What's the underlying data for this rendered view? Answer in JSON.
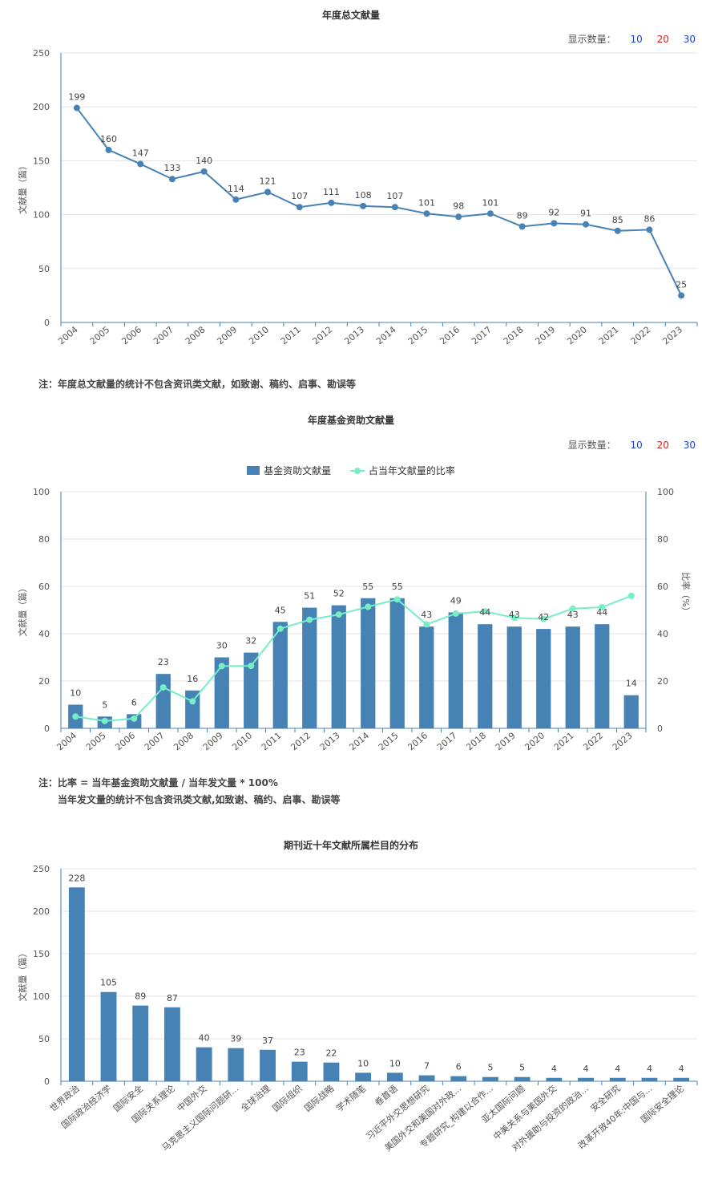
{
  "count_selector": {
    "label": "显示数量：",
    "options": [
      "10",
      "20",
      "30"
    ],
    "colors": [
      "#1a3fd6",
      "#e02020",
      "#1a3fd6"
    ]
  },
  "chart1_note": "注：年度总文献量的统计不包含资讯类文献，如致谢、稿约、启事、勘误等",
  "chart2_note": {
    "line1": "注：比率 = 当年基金资助文献量 / 当年发文量 * 100%",
    "line2": "当年发文量的统计不包含资讯类文献,如致谢、稿约、启事、勘误等"
  },
  "chart_data": [
    {
      "type": "line",
      "title": "年度总文献量",
      "ylabel": "文献量（篇）",
      "ylim": [
        0,
        250
      ],
      "yticks": [
        0,
        50,
        100,
        150,
        200,
        250
      ],
      "grid": true,
      "color": "#4682b4",
      "x": [
        "2004",
        "2005",
        "2006",
        "2007",
        "2008",
        "2009",
        "2010",
        "2011",
        "2012",
        "2013",
        "2014",
        "2015",
        "2016",
        "2017",
        "2018",
        "2019",
        "2020",
        "2021",
        "2022",
        "2023"
      ],
      "values": [
        199,
        160,
        147,
        133,
        140,
        114,
        121,
        107,
        111,
        108,
        107,
        101,
        98,
        101,
        89,
        92,
        91,
        85,
        86,
        25
      ]
    },
    {
      "type": "bar",
      "title": "年度基金资助文献量",
      "ylabel": "文献量（篇）",
      "y2label": "比率（%）",
      "ylim": [
        0,
        100
      ],
      "y2lim": [
        0,
        100
      ],
      "yticks": [
        0,
        20,
        40,
        60,
        80,
        100
      ],
      "grid": true,
      "categories": [
        "2004",
        "2005",
        "2006",
        "2007",
        "2008",
        "2009",
        "2010",
        "2011",
        "2012",
        "2013",
        "2014",
        "2015",
        "2016",
        "2017",
        "2018",
        "2019",
        "2020",
        "2021",
        "2022",
        "2023"
      ],
      "series": [
        {
          "name": "基金资助文献量",
          "type": "bar",
          "color": "#4682b4",
          "values": [
            10,
            5,
            6,
            23,
            16,
            30,
            32,
            45,
            51,
            52,
            55,
            55,
            43,
            49,
            44,
            43,
            42,
            43,
            44,
            14
          ]
        },
        {
          "name": "占当年文献量的比率",
          "type": "line",
          "axis": "right",
          "color": "#76eec6",
          "values": [
            5.0,
            3.1,
            4.1,
            17.3,
            11.4,
            26.3,
            26.4,
            42.1,
            45.9,
            48.1,
            51.4,
            54.5,
            43.9,
            48.5,
            49.4,
            46.7,
            46.2,
            50.6,
            51.2,
            56.0
          ]
        }
      ]
    },
    {
      "type": "bar",
      "title": "期刊近十年文献所属栏目的分布",
      "ylabel": "文献量（篇）",
      "ylim": [
        0,
        250
      ],
      "yticks": [
        0,
        50,
        100,
        150,
        200,
        250
      ],
      "grid": true,
      "color": "#4682b4",
      "categories": [
        "世界政治",
        "国际政治经济学",
        "国际安全",
        "国际关系理论",
        "中国外交",
        "马克思主义国际问题研...",
        "全球治理",
        "国际组织",
        "国际战略",
        "学术随笔",
        "卷首语",
        "习近平外交思想研究",
        "美国外交和美国对外政...",
        "专题研究_构建以合作...",
        "亚太国际问题",
        "中美关系与美国外交",
        "对外援助与投资的政治...",
        "安全研究",
        "改革开放40年:中国与...",
        "国际安全理论"
      ],
      "values": [
        228,
        105,
        89,
        87,
        40,
        39,
        37,
        23,
        22,
        10,
        10,
        7,
        6,
        5,
        5,
        4,
        4,
        4,
        4,
        4
      ]
    }
  ]
}
